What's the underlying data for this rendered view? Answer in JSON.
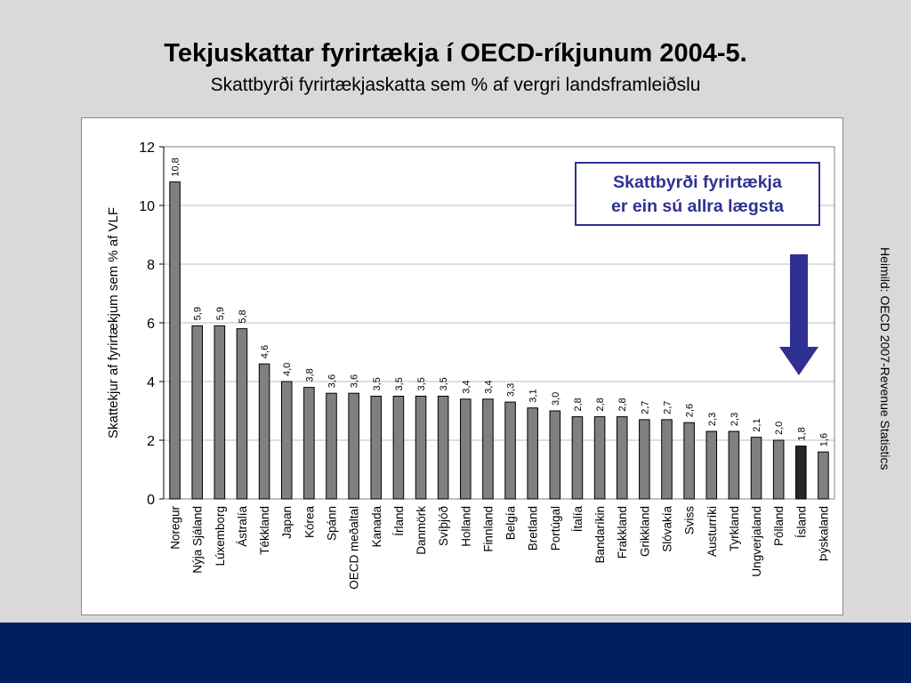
{
  "slide": {
    "title": "Tekjuskattar fyrirtækja í OECD-ríkjunum 2004-5.",
    "subtitle": "Skattbyrði fyrirtækjaskatta sem % af vergri landsframleiðslu",
    "callout_line1": "Skattbyrði fyrirtækja",
    "callout_line2": "er ein sú allra lægsta",
    "source": "Heimild: OECD 2007-Revenue Statistics",
    "colors": {
      "background": "#d9d9d9",
      "bar": "#808080",
      "highlight_bar": "#262626",
      "accent": "#2e3192",
      "footer": "#001f5f"
    }
  },
  "chart_data": {
    "type": "bar",
    "title": "",
    "xlabel": "",
    "ylabel": "Skattekjur af fyrirtækjum sem % af VLF",
    "ylim": [
      0,
      12
    ],
    "yticks": [
      0,
      2,
      4,
      6,
      8,
      10,
      12
    ],
    "grid": true,
    "highlight_category": "Ísland",
    "categories": [
      "Noregur",
      "Nýja Sjáland",
      "Lúxemborg",
      "Ástralía",
      "Tékkland",
      "Japan",
      "Kórea",
      "Spánn",
      "OECD meðaltal",
      "Kanada",
      "Írland",
      "Danmörk",
      "Svíþjóð",
      "Holland",
      "Finnland",
      "Belgía",
      "Bretland",
      "Portúgal",
      "Ítalía",
      "Bandaríkin",
      "Frakkland",
      "Grikkland",
      "Slóvakía",
      "Sviss",
      "Austurríki",
      "Tyrkland",
      "Ungverjaland",
      "Pólland",
      "Ísland",
      "Þýskaland"
    ],
    "values": [
      10.8,
      5.9,
      5.9,
      5.8,
      4.6,
      4.0,
      3.8,
      3.6,
      3.6,
      3.5,
      3.5,
      3.5,
      3.5,
      3.4,
      3.4,
      3.3,
      3.1,
      3.0,
      2.8,
      2.8,
      2.8,
      2.7,
      2.7,
      2.6,
      2.3,
      2.3,
      2.1,
      2.0,
      1.8,
      1.6
    ],
    "value_labels": [
      "10,8",
      "5,9",
      "5,9",
      "5,8",
      "4,6",
      "4,0",
      "3,8",
      "3,6",
      "3,6",
      "3,5",
      "3,5",
      "3,5",
      "3,5",
      "3,4",
      "3,4",
      "3,3",
      "3,1",
      "3,0",
      "2,8",
      "2,8",
      "2,8",
      "2,7",
      "2,7",
      "2,6",
      "2,3",
      "2,3",
      "2,1",
      "2,0",
      "1,8",
      "1,6"
    ]
  }
}
